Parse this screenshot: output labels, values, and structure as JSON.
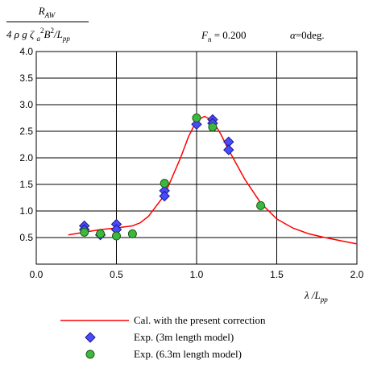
{
  "chart_data": {
    "type": "line",
    "ylabel_numerator": [
      {
        "text": "R",
        "style": "italic"
      },
      {
        "text": "AW",
        "style": "sub"
      }
    ],
    "ylabel_denominator": [
      {
        "text": "4 ρ g ζ ",
        "style": "italic"
      },
      {
        "text": "a",
        "style": "sub"
      },
      {
        "text": "2",
        "style": "sup"
      },
      {
        "text": "B",
        "style": "italic"
      },
      {
        "text": "2",
        "style": "sup"
      },
      {
        "text": "/L",
        "style": "italic"
      },
      {
        "text": "pp",
        "style": "sub"
      }
    ],
    "annotations": [
      [
        {
          "text": "F",
          "style": "italic"
        },
        {
          "text": "n",
          "style": "sub"
        },
        {
          "text": " = 0.200",
          "style": "normal"
        }
      ],
      [
        {
          "text": "α",
          "style": "italic"
        },
        {
          "text": "=0deg.",
          "style": "normal"
        }
      ]
    ],
    "xlabel": [
      {
        "text": "λ /L",
        "style": "italic"
      },
      {
        "text": "pp",
        "style": "sub"
      }
    ],
    "xlim": [
      0,
      2
    ],
    "ylim": [
      0,
      4
    ],
    "xticks": [
      {
        "value": 0,
        "label": "0.0"
      },
      0.5,
      {
        "value": 1,
        "label": "1.0"
      },
      1.5,
      {
        "value": 2,
        "label": "2.0"
      }
    ],
    "yticks": [
      0.5,
      {
        "value": 1,
        "label": "1.0"
      },
      1.5,
      {
        "value": 2,
        "label": "2.0"
      },
      2.5,
      {
        "value": 3,
        "label": "3.0"
      },
      3.5,
      {
        "value": 4,
        "label": "4.0"
      }
    ],
    "grid": true,
    "series": [
      {
        "name": "Cal. with the present correction",
        "mark": "line",
        "color": "#ff0000",
        "x": [
          0.2,
          0.3,
          0.4,
          0.5,
          0.55,
          0.6,
          0.65,
          0.7,
          0.8,
          0.9,
          0.95,
          1.0,
          1.05,
          1.1,
          1.15,
          1.2,
          1.3,
          1.4,
          1.5,
          1.6,
          1.7,
          1.8,
          1.9,
          2.0
        ],
        "values": [
          0.55,
          0.6,
          0.65,
          0.68,
          0.7,
          0.72,
          0.78,
          0.9,
          1.3,
          2.0,
          2.4,
          2.7,
          2.78,
          2.7,
          2.45,
          2.15,
          1.6,
          1.15,
          0.85,
          0.68,
          0.57,
          0.5,
          0.44,
          0.38
        ]
      },
      {
        "name": "Exp. (3m length model)",
        "mark": "diamond",
        "color": "#4a4aff",
        "x": [
          0.3,
          0.3,
          0.4,
          0.5,
          0.5,
          0.8,
          0.8,
          1.0,
          1.1,
          1.1,
          1.2,
          1.2
        ],
        "values": [
          0.72,
          0.65,
          0.55,
          0.75,
          0.65,
          1.38,
          1.28,
          2.63,
          2.72,
          2.65,
          2.3,
          2.15
        ]
      },
      {
        "name": "Exp. (6.3m length model)",
        "mark": "circle",
        "color": "#3cb83c",
        "x": [
          0.3,
          0.4,
          0.5,
          0.6,
          0.8,
          1.0,
          1.1,
          1.4
        ],
        "values": [
          0.6,
          0.57,
          0.53,
          0.57,
          1.52,
          2.75,
          2.58,
          1.1
        ]
      }
    ]
  }
}
